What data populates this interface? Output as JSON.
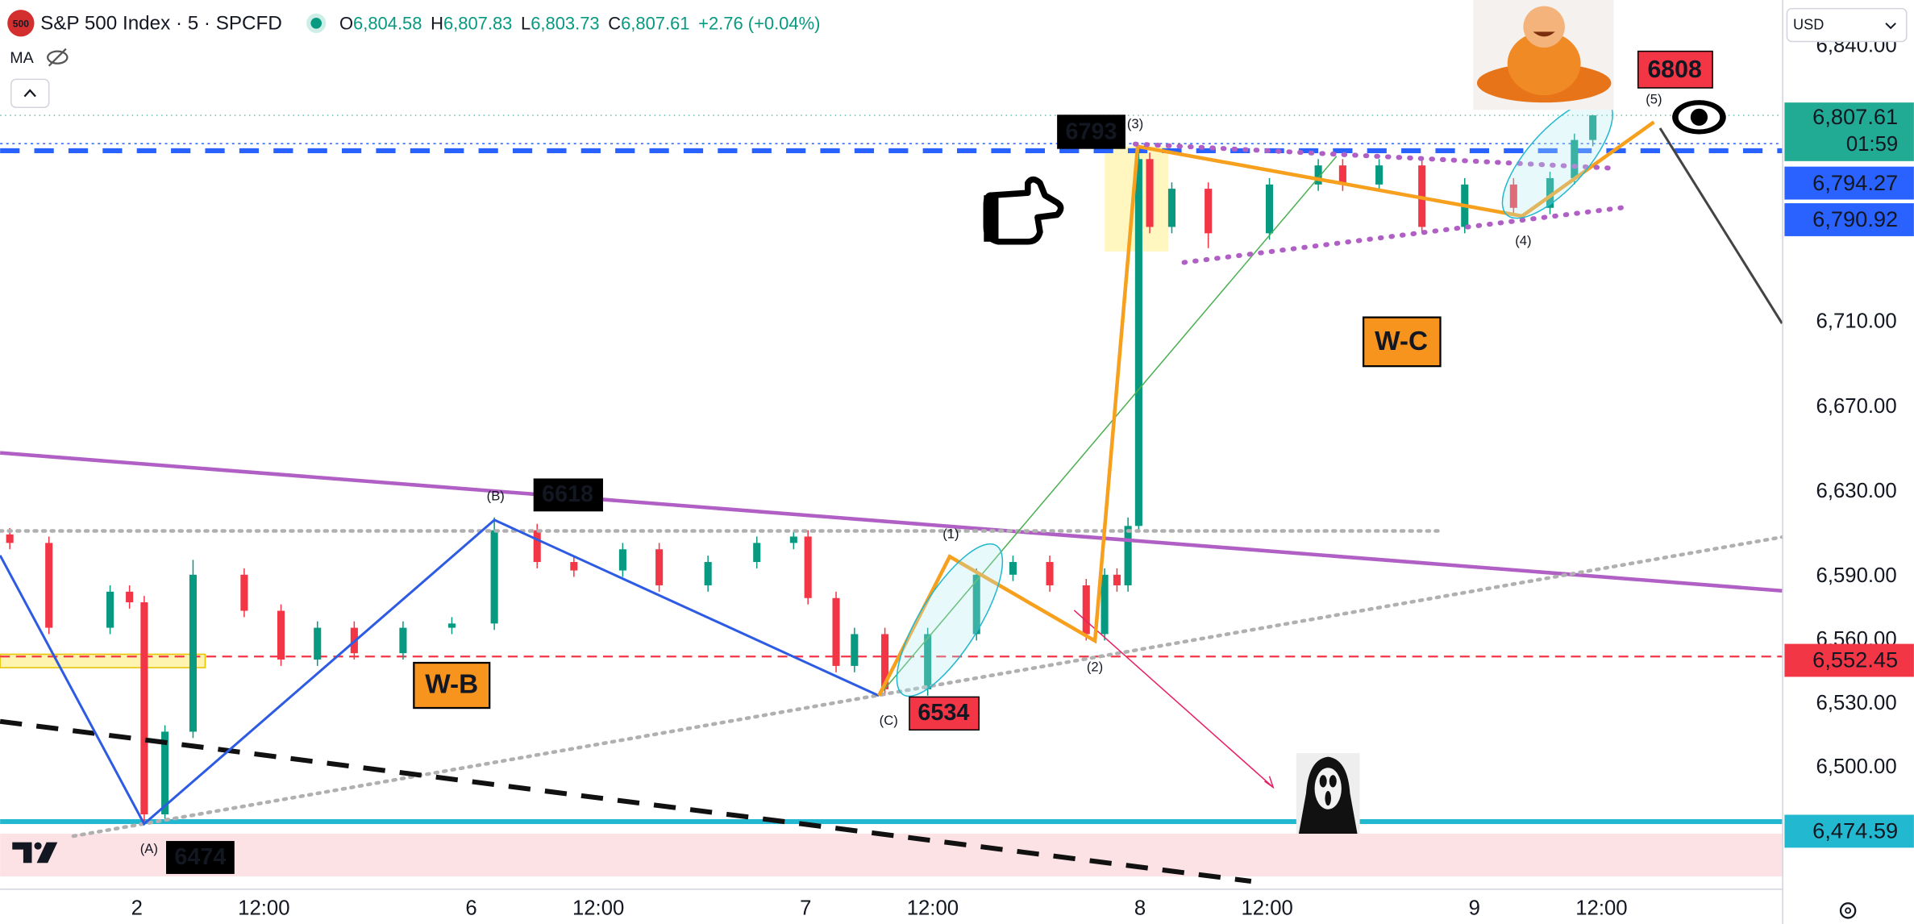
{
  "header": {
    "logo": "500",
    "title": "S&P 500 Index · 5 · SPCFD",
    "ohlc": [
      {
        "key": "O",
        "value": "6,804.58"
      },
      {
        "key": "H",
        "value": "6,807.83"
      },
      {
        "key": "L",
        "value": "6,803.73"
      },
      {
        "key": "C",
        "value": "6,807.61"
      }
    ],
    "change": "+2.76 (+0.04%)",
    "indicator": "MA",
    "currency": "USD"
  },
  "chart_data": {
    "type": "candlestick",
    "x": [
      -0.38,
      -0.263,
      -0.08,
      -0.022,
      0.022,
      0.084,
      0.168,
      0.321,
      0.431,
      0.54,
      0.65,
      0.796,
      0.942,
      1.069,
      1.197,
      1.307,
      1.453,
      1.562,
      1.708,
      1.854,
      1.964,
      2.007,
      2.091,
      2.146,
      2.237,
      2.365,
      2.511,
      2.62,
      2.73,
      2.839,
      2.894,
      2.931,
      2.964,
      2.996,
      3.029,
      3.095,
      3.204,
      3.387,
      3.533,
      3.606,
      3.715,
      3.843,
      3.971,
      4.117,
      4.226,
      4.299,
      4.354
    ],
    "open": [
      6610,
      6606,
      6566,
      6583,
      6578,
      6478,
      6517,
      6591,
      6574,
      6551,
      6566,
      6554,
      6566,
      6568,
      6612,
      6597,
      6593,
      6603,
      6586,
      6597,
      6606,
      6609,
      6580,
      6548,
      6563,
      6537,
      6563,
      6591,
      6597,
      6586,
      6563,
      6591,
      6586,
      6614,
      6787,
      6755,
      6773,
      6752,
      6775,
      6784,
      6775,
      6784,
      6755,
      6775,
      6764,
      6778,
      6796
    ],
    "high": [
      6613,
      6609,
      6586,
      6586,
      6581,
      6520,
      6598,
      6594,
      6577,
      6569,
      6569,
      6569,
      6571,
      6618,
      6615,
      6600,
      6606,
      6606,
      6600,
      6609,
      6612,
      6612,
      6583,
      6566,
      6566,
      6566,
      6594,
      6600,
      6600,
      6589,
      6594,
      6594,
      6618,
      6793,
      6790,
      6776,
      6776,
      6778,
      6787,
      6787,
      6787,
      6787,
      6778,
      6778,
      6781,
      6799,
      6807.83
    ],
    "low": [
      6603,
      6563,
      6563,
      6575,
      6474,
      6475,
      6514,
      6571,
      6548,
      6548,
      6551,
      6551,
      6563,
      6565,
      6594,
      6590,
      6590,
      6583,
      6583,
      6594,
      6603,
      6577,
      6545,
      6545,
      6534,
      6534,
      6560,
      6588,
      6583,
      6560,
      6560,
      6583,
      6583,
      6611,
      6752,
      6752,
      6745,
      6749,
      6772,
      6772,
      6772,
      6752,
      6752,
      6761,
      6761,
      6775,
      6793
    ],
    "close": [
      6606,
      6566,
      6583,
      6578,
      6478,
      6517,
      6591,
      6574,
      6551,
      6566,
      6554,
      6566,
      6568,
      6612,
      6597,
      6593,
      6603,
      6586,
      6597,
      6606,
      6609,
      6580,
      6548,
      6563,
      6537,
      6563,
      6591,
      6597,
      6586,
      6563,
      6591,
      6586,
      6614,
      6787,
      6755,
      6773,
      6752,
      6775,
      6784,
      6775,
      6784,
      6755,
      6775,
      6764,
      6778,
      6796,
      6807.61
    ],
    "up_color": "#089981",
    "down_color": "#f23645",
    "xlim": [
      -0.409,
      4.92
    ],
    "ylim": [
      6443,
      6862
    ],
    "xticks": [
      {
        "value": 0,
        "label": "2"
      },
      {
        "value": 0.38,
        "label": "12:00"
      },
      {
        "value": 1,
        "label": "6"
      },
      {
        "value": 1.38,
        "label": "12:00"
      },
      {
        "value": 2,
        "label": "7"
      },
      {
        "value": 2.38,
        "label": "12:00"
      },
      {
        "value": 3,
        "label": "8"
      },
      {
        "value": 3.38,
        "label": "12:00"
      },
      {
        "value": 4,
        "label": "9"
      },
      {
        "value": 4.38,
        "label": "12:00"
      }
    ],
    "yticks": [
      {
        "value": 6500,
        "label": "6,500.00"
      },
      {
        "value": 6530,
        "label": "6,530.00"
      },
      {
        "value": 6560,
        "label": "6,560.00"
      },
      {
        "value": 6590,
        "label": "6,590.00"
      },
      {
        "value": 6630,
        "label": "6,630.00"
      },
      {
        "value": 6670,
        "label": "6,670.00"
      },
      {
        "value": 6710,
        "label": "6,710.00"
      },
      {
        "value": 6840,
        "label": "6,840.00"
      }
    ],
    "price_labels": [
      {
        "value": 6807.61,
        "label": "6,807.61",
        "color": "#22ab94"
      },
      {
        "value": 6794.27,
        "label": "6,794.27",
        "color": "#2962ff"
      },
      {
        "value": 6790.92,
        "label": "6,790.92",
        "color": "#2962ff"
      },
      {
        "value": 6552.45,
        "label": "6,552.45",
        "color": "#f23645"
      },
      {
        "value": 6474.59,
        "label": "6,474.59",
        "color": "#22b8cf"
      }
    ],
    "countdown": "01:59",
    "annotations": {
      "price_boxes": {
        "a": 6474,
        "b": 6618,
        "c": 6534,
        "w3": 6793,
        "target": 6808
      },
      "waves": {
        "a": "(A)",
        "b": "(B)",
        "c": "(C)",
        "w1": "(1)",
        "w2": "(2)",
        "w3": "(3)",
        "w4": "(4)",
        "w5": "(5)"
      },
      "wb": "W-B",
      "wc": "W-C"
    }
  }
}
